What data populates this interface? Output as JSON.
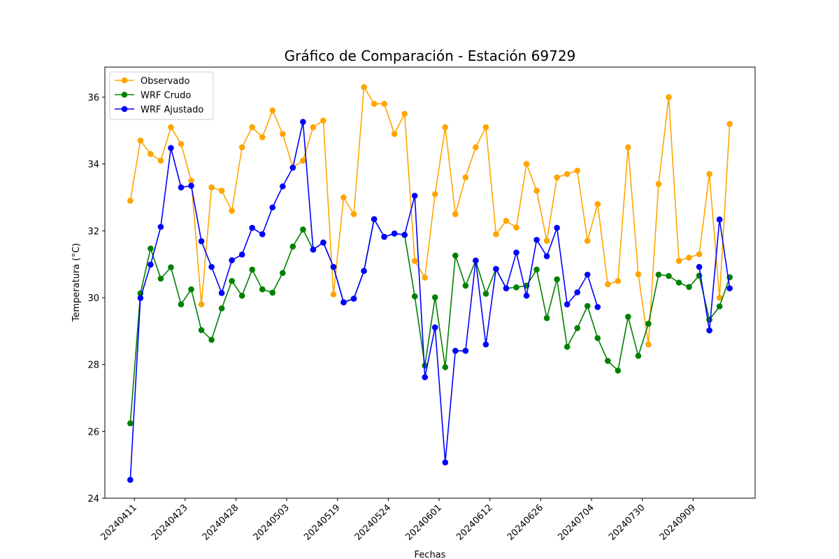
{
  "chart_data": {
    "type": "line",
    "title": "Gráfico de Comparación - Estación 69729",
    "xlabel": "Fechas",
    "ylabel": "Temperatura (°C)",
    "ylim": [
      24,
      36.9
    ],
    "yticks": [
      24,
      26,
      28,
      30,
      32,
      34,
      36
    ],
    "xtick_labels": [
      "20240411",
      "20240423",
      "20240428",
      "20240503",
      "20240519",
      "20240524",
      "20240601",
      "20240612",
      "20240626",
      "20240704",
      "20240730",
      "20240909"
    ],
    "xtick_positions": [
      0.4,
      5.4,
      10.4,
      15.4,
      20.4,
      25.4,
      30.4,
      35.4,
      40.4,
      45.4,
      50.4,
      55.4
    ],
    "n_points": 60,
    "legend_position": "upper left",
    "series": [
      {
        "name": "Observado",
        "color": "#ffa500",
        "values": [
          32.9,
          34.7,
          34.3,
          34.1,
          35.1,
          34.6,
          33.5,
          29.8,
          33.3,
          33.2,
          32.6,
          34.5,
          35.1,
          34.8,
          35.6,
          34.9,
          33.9,
          34.1,
          35.1,
          35.3,
          30.1,
          33.0,
          32.5,
          36.3,
          35.8,
          35.8,
          34.9,
          35.5,
          31.1,
          30.6,
          33.1,
          35.1,
          32.5,
          33.6,
          34.5,
          35.1,
          31.9,
          32.3,
          32.1,
          34.0,
          33.2,
          31.7,
          33.6,
          33.7,
          33.8,
          31.7,
          32.8,
          30.4,
          30.5,
          34.5,
          30.7,
          28.6,
          33.4,
          36.0,
          31.1,
          31.2,
          31.3,
          33.7,
          30.0,
          35.2
        ]
      },
      {
        "name": "WRF Crudo",
        "color": "#008000",
        "values": [
          26.24,
          30.13,
          31.47,
          30.57,
          30.91,
          29.8,
          30.25,
          29.03,
          28.74,
          29.68,
          30.5,
          30.06,
          30.84,
          30.25,
          30.15,
          30.74,
          31.53,
          32.04,
          31.44,
          31.65,
          30.92,
          29.86,
          29.97,
          30.8,
          32.35,
          31.82,
          31.92,
          31.88,
          30.04,
          27.97,
          30.01,
          27.92,
          31.26,
          30.36,
          31.11,
          30.12,
          30.86,
          30.28,
          30.31,
          30.36,
          30.84,
          29.39,
          30.55,
          28.53,
          29.09,
          29.75,
          28.79,
          28.11,
          27.82,
          29.43,
          28.26,
          29.22,
          30.69,
          30.65,
          30.45,
          30.32,
          30.66,
          29.34,
          29.74,
          30.61
        ]
      },
      {
        "name": "WRF Ajustado",
        "color": "#0000ff",
        "values": [
          24.55,
          29.99,
          30.99,
          32.12,
          34.48,
          33.3,
          33.35,
          31.69,
          30.92,
          30.14,
          31.12,
          31.29,
          32.09,
          31.9,
          32.7,
          33.33,
          33.89,
          35.26,
          31.44,
          31.65,
          30.92,
          29.86,
          29.97,
          30.8,
          32.35,
          31.82,
          31.92,
          31.88,
          33.05,
          27.62,
          29.11,
          25.07,
          28.41,
          28.41,
          31.11,
          28.6,
          30.86,
          30.28,
          31.35,
          30.06,
          31.73,
          31.24,
          32.09,
          29.8,
          30.16,
          30.69,
          29.72,
          null,
          null,
          null,
          null,
          null,
          null,
          null,
          null,
          null,
          30.92,
          29.02,
          32.34,
          30.28
        ]
      }
    ]
  }
}
